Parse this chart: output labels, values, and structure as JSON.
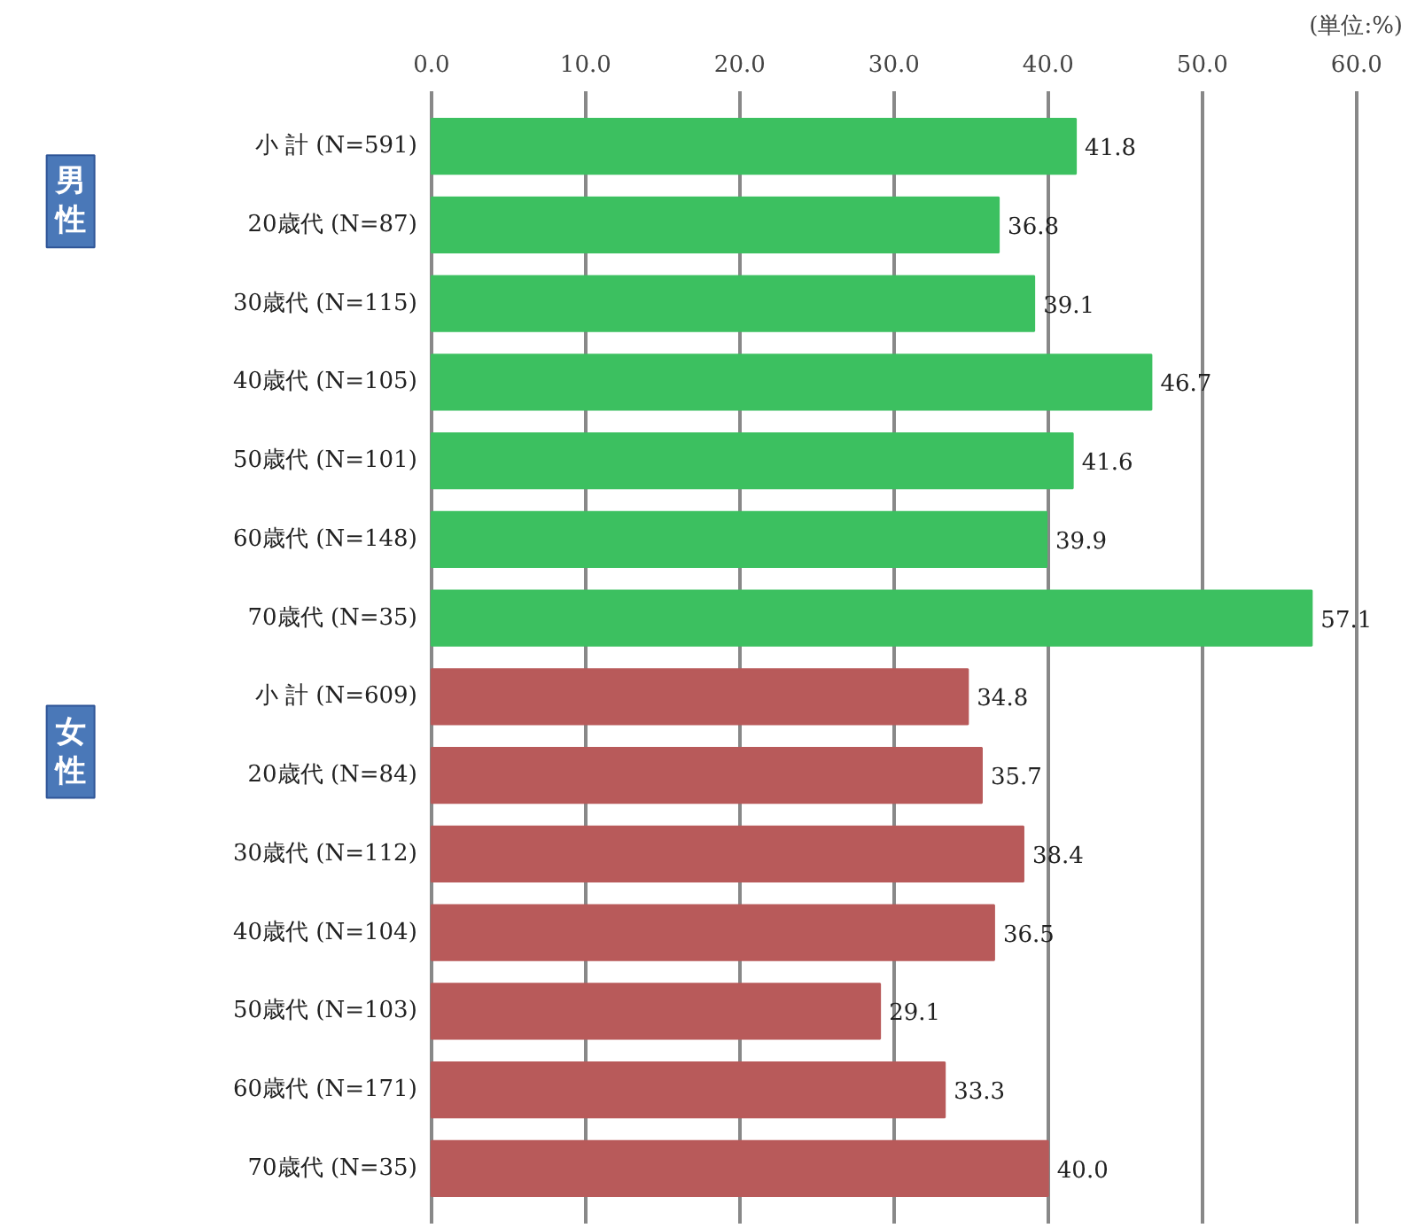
{
  "chart_data": {
    "type": "bar",
    "orientation": "horizontal",
    "categories": [
      "小 計 (N=591)",
      "20歳代 (N=87)",
      "30歳代 (N=115)",
      "40歳代 (N=105)",
      "50歳代 (N=101)",
      "60歳代 (N=148)",
      "70歳代 (N=35)",
      "小 計 (N=609)",
      "20歳代 (N=84)",
      "30歳代 (N=112)",
      "40歳代 (N=104)",
      "50歳代 (N=103)",
      "60歳代 (N=171)",
      "70歳代 (N=35)"
    ],
    "values": [
      41.8,
      36.8,
      39.1,
      46.7,
      41.6,
      39.9,
      57.1,
      34.8,
      35.7,
      38.4,
      36.5,
      29.1,
      33.3,
      40.0
    ],
    "colors": [
      "#3cc060",
      "#3cc060",
      "#3cc060",
      "#3cc060",
      "#3cc060",
      "#3cc060",
      "#3cc060",
      "#b85a5a",
      "#b85a5a",
      "#b85a5a",
      "#b85a5a",
      "#b85a5a",
      "#b85a5a",
      "#b85a5a"
    ],
    "xlim": [
      0,
      60
    ],
    "xticks": [
      {
        "value": 0,
        "label": "0.0"
      },
      {
        "value": 10,
        "label": "10.0"
      },
      {
        "value": 20,
        "label": "20.0"
      },
      {
        "value": 30,
        "label": "30.0"
      },
      {
        "value": 40,
        "label": "40.0"
      },
      {
        "value": 50,
        "label": "50.0"
      },
      {
        "value": 60,
        "label": "60.0"
      }
    ],
    "grid": "x",
    "value_labels": [
      "41.8",
      "36.8",
      "39.1",
      "46.7",
      "41.6",
      "39.9",
      "57.1",
      "34.8",
      "35.7",
      "38.4",
      "36.5",
      "29.1",
      "33.3",
      "40.0"
    ],
    "annotations": [
      "(単位:%)",
      "男性",
      "女性"
    ]
  }
}
